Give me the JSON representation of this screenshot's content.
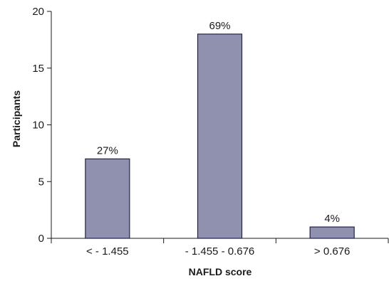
{
  "chart_data": {
    "type": "bar",
    "title": "",
    "xlabel": "NAFLD score",
    "ylabel": "Participants",
    "categories": [
      "< - 1.455",
      "- 1.455 - 0.676",
      "> 0.676"
    ],
    "values": [
      7,
      18,
      1
    ],
    "data_labels": [
      "27%",
      "69%",
      "4%"
    ],
    "ylim": [
      0,
      20
    ],
    "yticks": [
      0,
      5,
      10,
      15,
      20
    ],
    "grid": false,
    "legend": "none",
    "colors": {
      "bar_fill": "#9091ae",
      "bar_stroke": "#1e2250"
    }
  }
}
